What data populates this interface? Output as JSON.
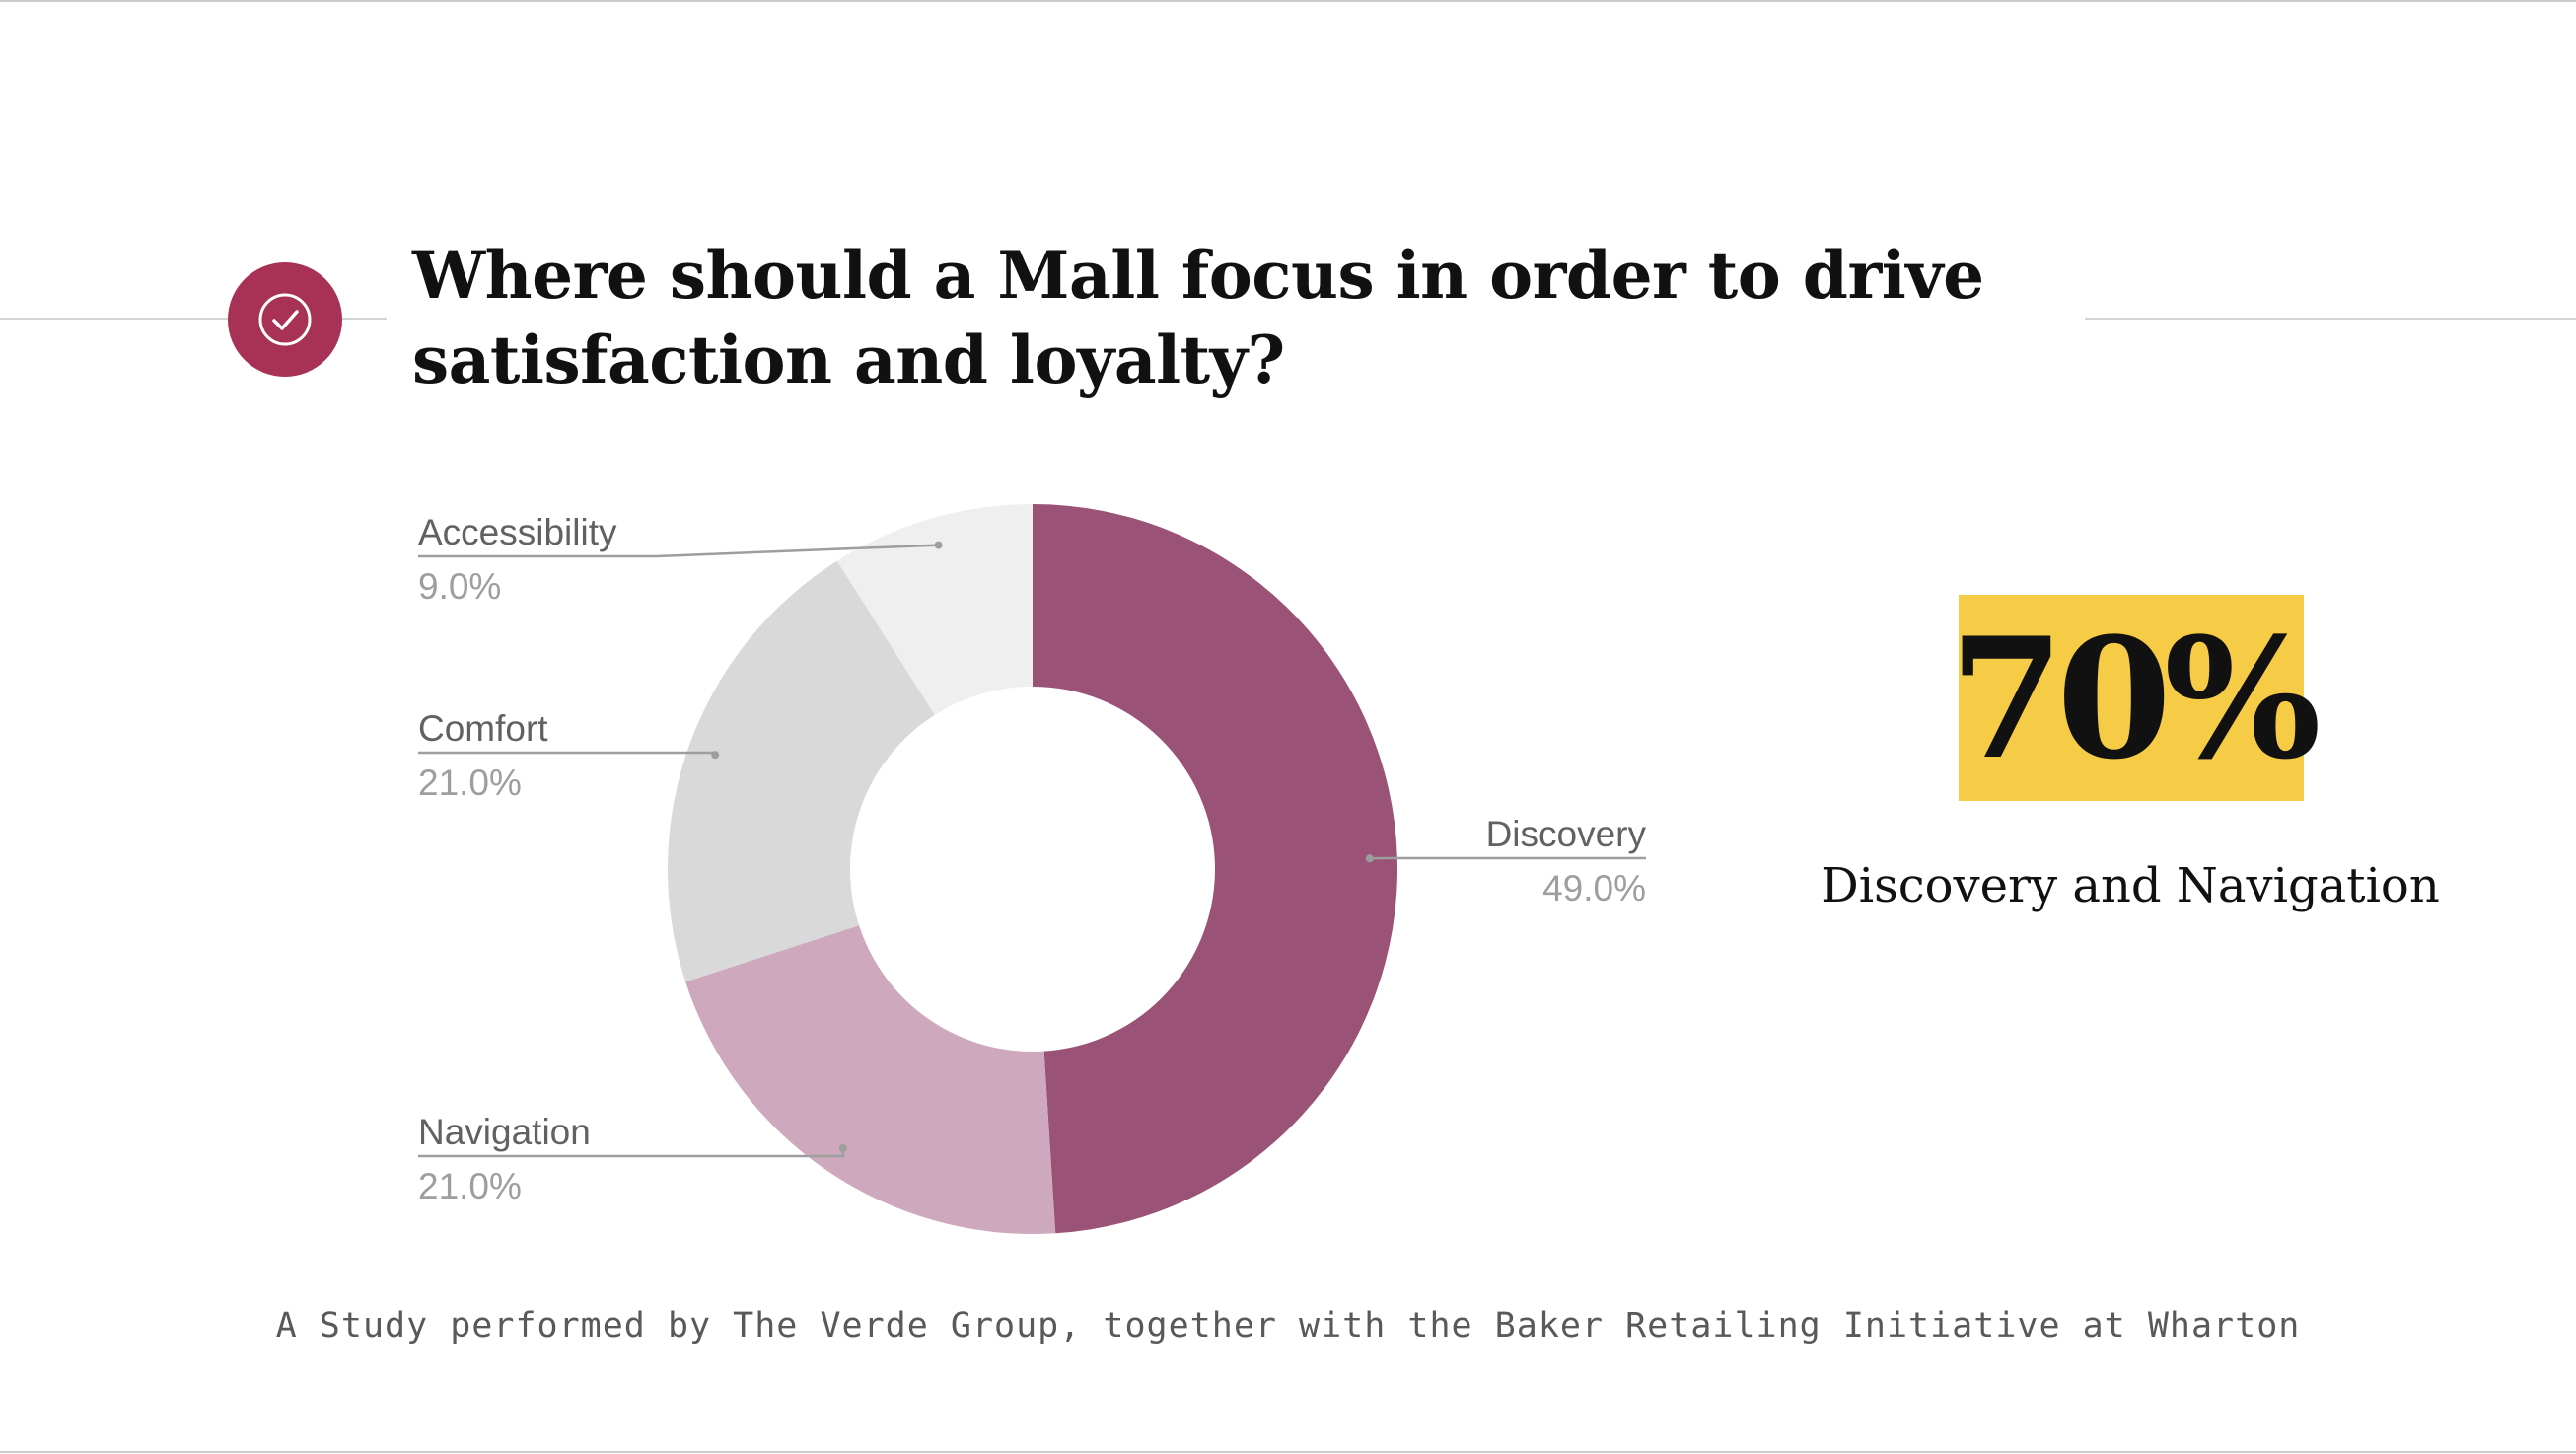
{
  "title": "Where should a Mall focus in order to drive satisfaction and loyalty?",
  "icon": "check-circle-icon",
  "colors": {
    "accent": "#a83255",
    "highlight": "#f6cb45",
    "rule": "#d4d4d4"
  },
  "chart_data": {
    "type": "pie",
    "donut": true,
    "categories": [
      "Discovery",
      "Navigation",
      "Comfort",
      "Accessibility"
    ],
    "values": [
      49.0,
      21.0,
      21.0,
      9.0
    ],
    "value_labels": [
      "49.0%",
      "21.0%",
      "21.0%",
      "9.0%"
    ],
    "colors": [
      "#9b5277",
      "#cea8bd",
      "#d9d9d9",
      "#efefef"
    ],
    "start_angle": "12 o'clock",
    "direction": "clockwise",
    "title": "",
    "legend": "none"
  },
  "highlight": {
    "value": "70%",
    "caption": "Discovery and Navigation"
  },
  "footer": "A Study performed by The Verde Group, together with the Baker Retailing Initiative at Wharton"
}
